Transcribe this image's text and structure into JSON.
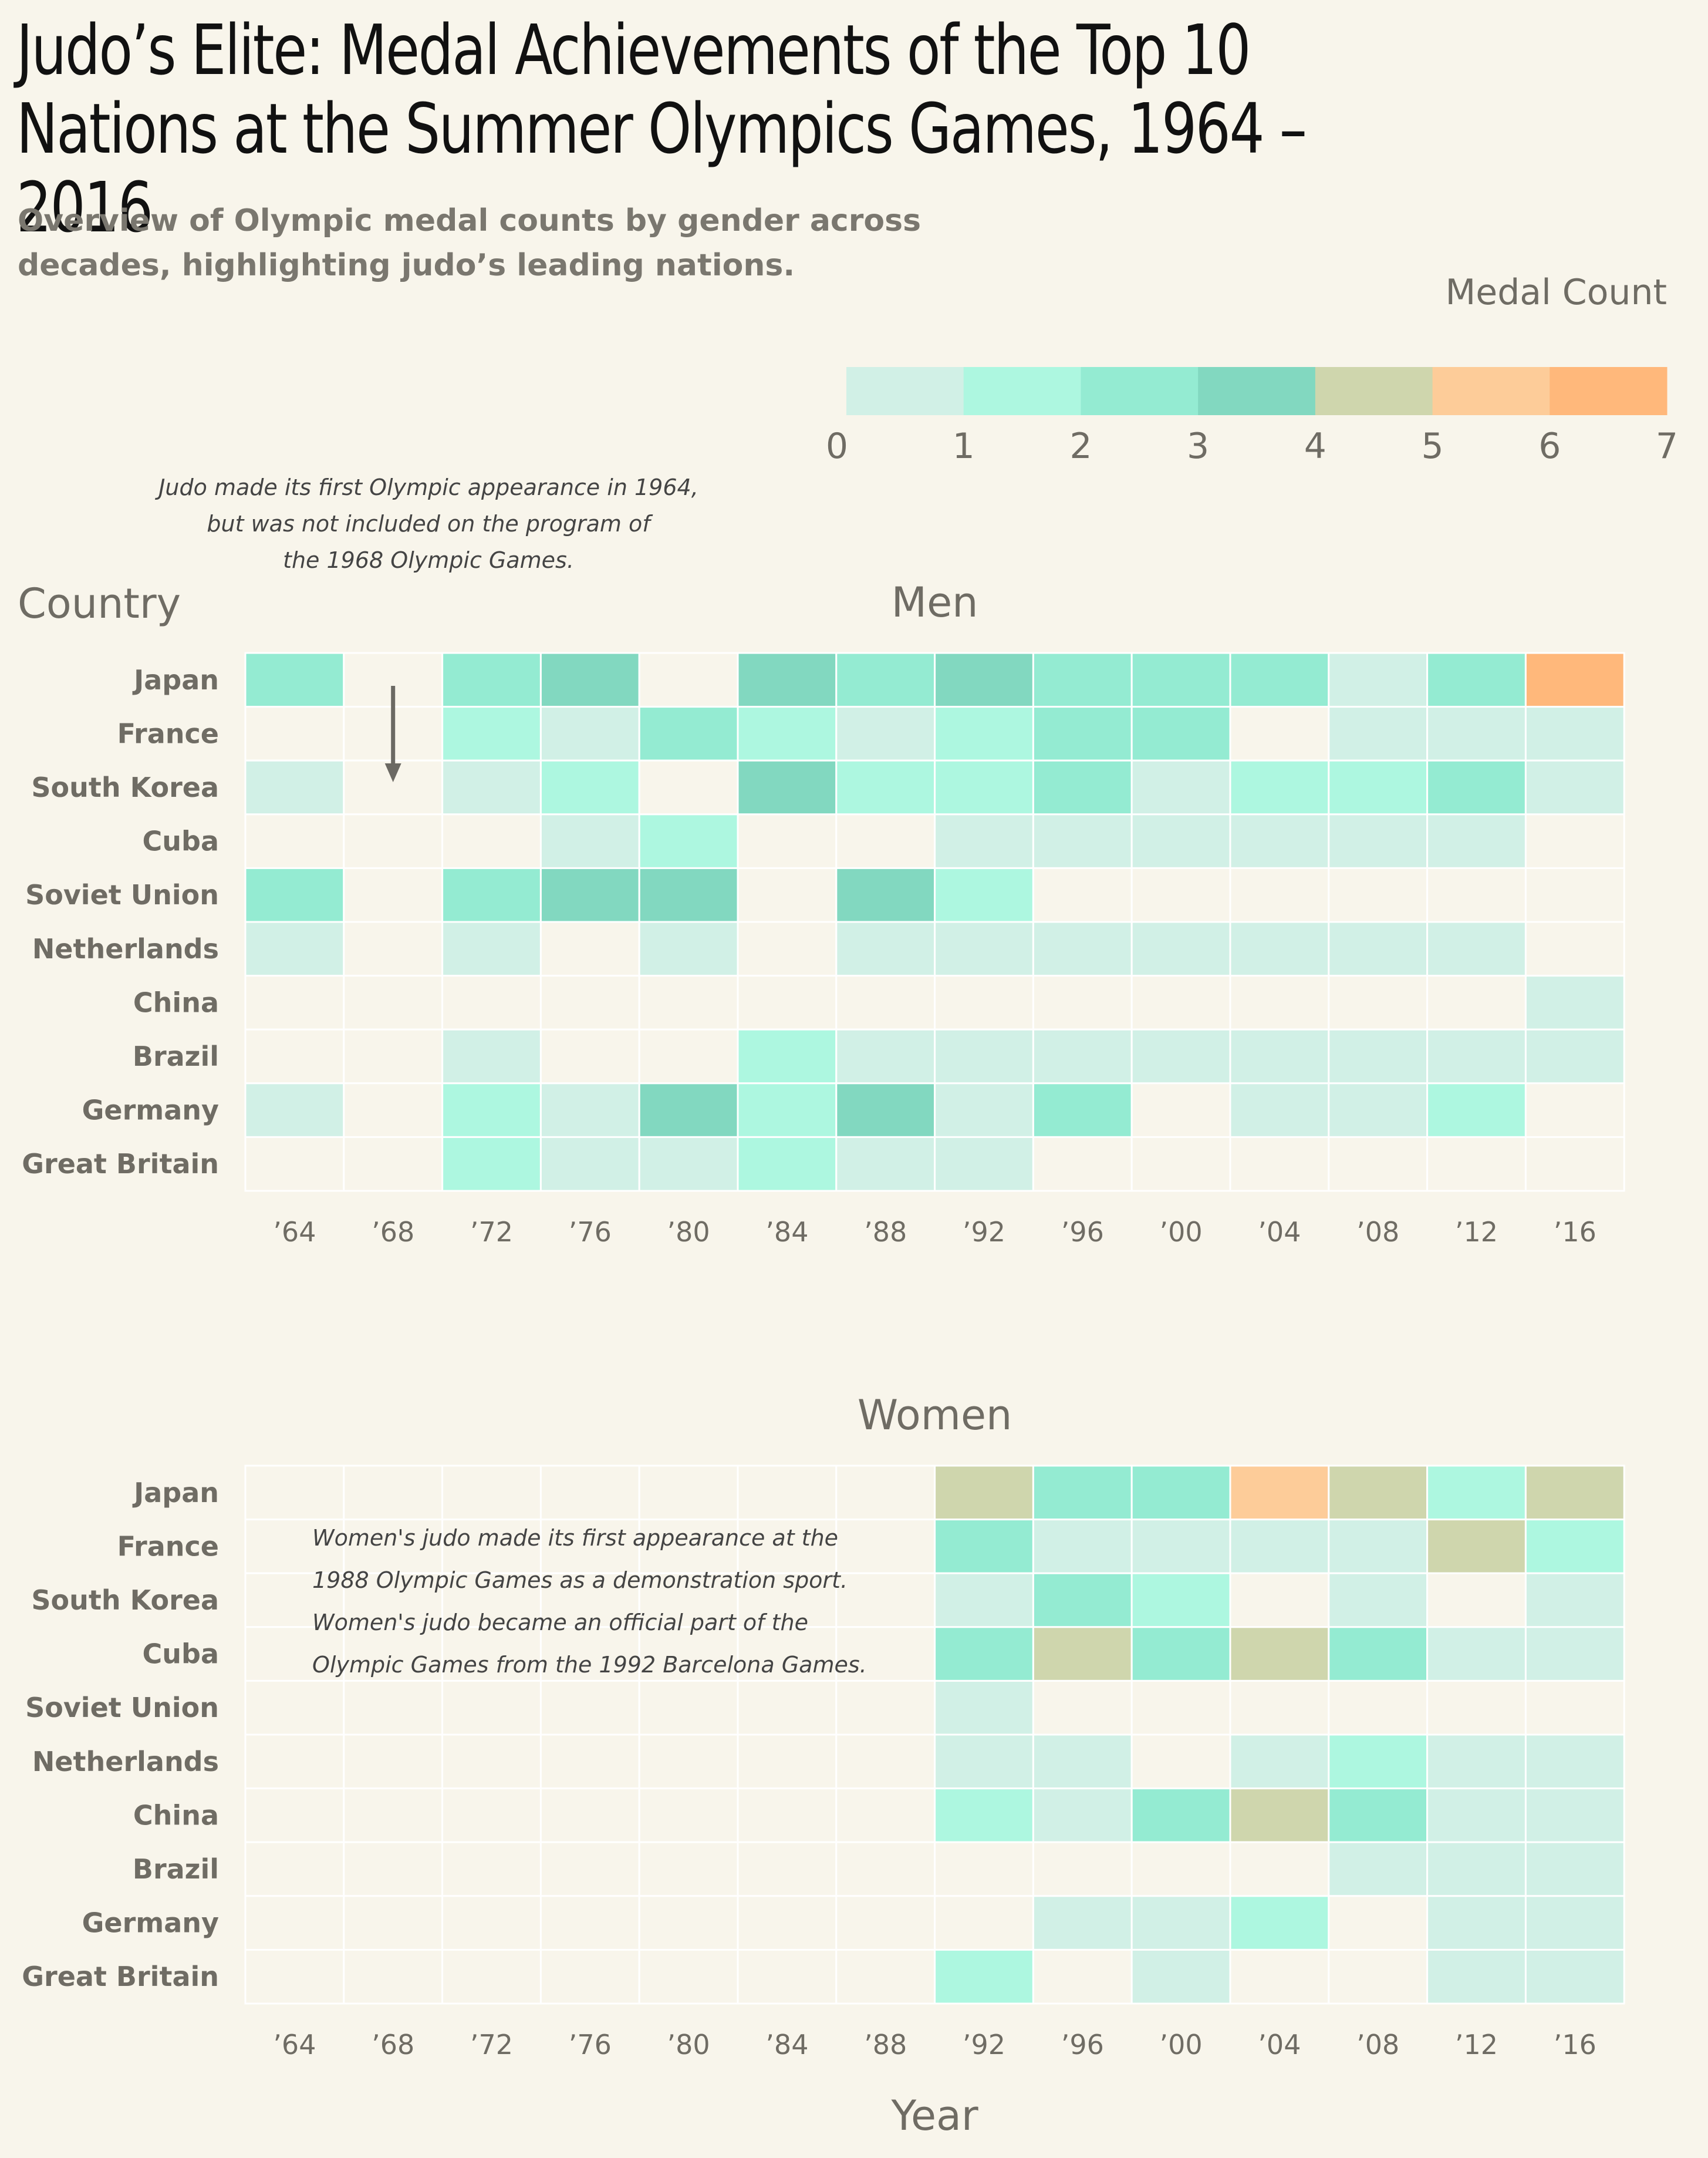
{
  "title": "Judo’s Elite: Medal Achievements of the Top 10 Nations at the Summer Olympics Games, 1964 – 2016",
  "subtitle": "Overview of Olympic medal counts by gender across decades, highlighting judo’s leading nations.",
  "legend": {
    "title": "Medal Count",
    "ticks": [
      "0",
      "1",
      "2",
      "3",
      "4",
      "5",
      "6",
      "7"
    ],
    "colors": [
      "#d1f0e6",
      "#adf7e0",
      "#94ebd2",
      "#82d8c0",
      "#cfd6ad",
      "#fdcc99",
      "#ffb87b"
    ],
    "empty_color": "#f8f5eb"
  },
  "chart_data": {
    "type": "heatmap",
    "xlabel": "Year",
    "ylabel": "Country",
    "years": [
      "’64",
      "’68",
      "’72",
      "’76",
      "’80",
      "’84",
      "’88",
      "’92",
      "’96",
      "’00",
      "’04",
      "’08",
      "’12",
      "’16"
    ],
    "countries": [
      "Japan",
      "France",
      "South Korea",
      "Cuba",
      "Soviet Union",
      "Netherlands",
      "China",
      "Brazil",
      "Germany",
      "Great Britain"
    ],
    "value_range": [
      0,
      7
    ],
    "panels": [
      {
        "name": "Men",
        "values": [
          [
            3,
            0,
            3,
            4,
            0,
            4,
            3,
            4,
            3,
            3,
            3,
            1,
            3,
            7
          ],
          [
            0,
            0,
            2,
            1,
            3,
            2,
            1,
            2,
            3,
            3,
            0,
            1,
            1,
            1
          ],
          [
            1,
            0,
            1,
            2,
            0,
            4,
            2,
            2,
            3,
            1,
            2,
            2,
            3,
            1
          ],
          [
            0,
            0,
            0,
            1,
            2,
            0,
            0,
            1,
            1,
            1,
            1,
            1,
            1,
            0
          ],
          [
            3,
            0,
            3,
            4,
            4,
            0,
            4,
            2,
            0,
            0,
            0,
            0,
            0,
            0
          ],
          [
            1,
            0,
            1,
            0,
            1,
            0,
            1,
            1,
            1,
            1,
            1,
            1,
            1,
            0
          ],
          [
            0,
            0,
            0,
            0,
            0,
            0,
            0,
            0,
            0,
            0,
            0,
            0,
            0,
            1
          ],
          [
            0,
            0,
            1,
            0,
            0,
            2,
            1,
            1,
            1,
            1,
            1,
            1,
            1,
            1
          ],
          [
            1,
            0,
            2,
            1,
            4,
            2,
            4,
            1,
            3,
            0,
            1,
            1,
            2,
            0
          ],
          [
            0,
            0,
            2,
            1,
            1,
            2,
            1,
            1,
            0,
            0,
            0,
            0,
            0,
            0
          ]
        ]
      },
      {
        "name": "Women",
        "values": [
          [
            0,
            0,
            0,
            0,
            0,
            0,
            0,
            5,
            3,
            3,
            6,
            5,
            2,
            5
          ],
          [
            0,
            0,
            0,
            0,
            0,
            0,
            0,
            3,
            1,
            1,
            1,
            1,
            5,
            2
          ],
          [
            0,
            0,
            0,
            0,
            0,
            0,
            0,
            1,
            3,
            2,
            0,
            1,
            0,
            1
          ],
          [
            0,
            0,
            0,
            0,
            0,
            0,
            0,
            3,
            5,
            3,
            5,
            3,
            1,
            1
          ],
          [
            0,
            0,
            0,
            0,
            0,
            0,
            0,
            1,
            0,
            0,
            0,
            0,
            0,
            0
          ],
          [
            0,
            0,
            0,
            0,
            0,
            0,
            0,
            1,
            1,
            0,
            1,
            2,
            1,
            1
          ],
          [
            0,
            0,
            0,
            0,
            0,
            0,
            0,
            2,
            1,
            3,
            5,
            3,
            1,
            1
          ],
          [
            0,
            0,
            0,
            0,
            0,
            0,
            0,
            0,
            0,
            0,
            0,
            1,
            1,
            1
          ],
          [
            0,
            0,
            0,
            0,
            0,
            0,
            0,
            0,
            1,
            1,
            2,
            0,
            1,
            1
          ],
          [
            0,
            0,
            0,
            0,
            0,
            0,
            0,
            2,
            0,
            1,
            0,
            0,
            1,
            1
          ]
        ]
      }
    ],
    "annotations": [
      {
        "panel": "Men",
        "lines": [
          "Judo made its first Olympic appearance in 1964,",
          "but was not included on the program of",
          "the 1968 Olympic Games."
        ],
        "arrow_to": "’68"
      },
      {
        "panel": "Women",
        "lines": [
          "Women's judo made its first appearance at the",
          "1988 Olympic Games as a demonstration sport.",
          "Women's judo became an official part of the",
          "Olympic Games from the 1992 Barcelona Games."
        ]
      }
    ]
  }
}
